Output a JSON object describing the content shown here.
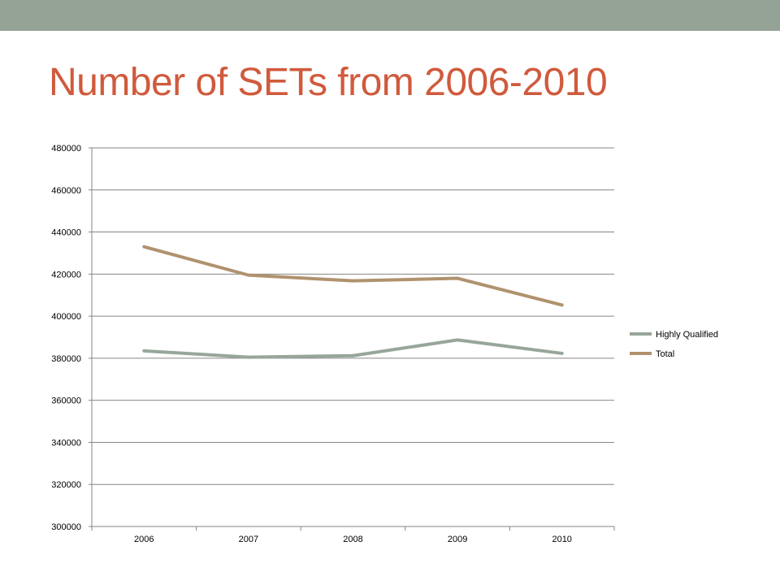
{
  "colors": {
    "top_bar": "#95A397",
    "title": "#D05A3C",
    "highly_qualified": "#97A69A",
    "total": "#B0926E",
    "gridline": "#868686",
    "axis": "#868686"
  },
  "slide": {
    "title": "Number of SETs from 2006-2010"
  },
  "chart_data": {
    "type": "line",
    "title": "",
    "xlabel": "",
    "ylabel": "",
    "categories": [
      "2006",
      "2007",
      "2008",
      "2009",
      "2010"
    ],
    "ylim": [
      300000,
      480000
    ],
    "ytick_step": 20000,
    "ytick_labels": [
      "300000",
      "320000",
      "340000",
      "360000",
      "380000",
      "400000",
      "420000",
      "440000",
      "460000",
      "480000"
    ],
    "grid": true,
    "legend_position": "right",
    "series": [
      {
        "name": "Highly Qualified",
        "values": [
          383500,
          380500,
          381200,
          388700,
          382300
        ],
        "color_key": "highly_qualified"
      },
      {
        "name": "Total",
        "values": [
          433000,
          419500,
          416800,
          418000,
          405300
        ],
        "color_key": "total"
      }
    ]
  }
}
